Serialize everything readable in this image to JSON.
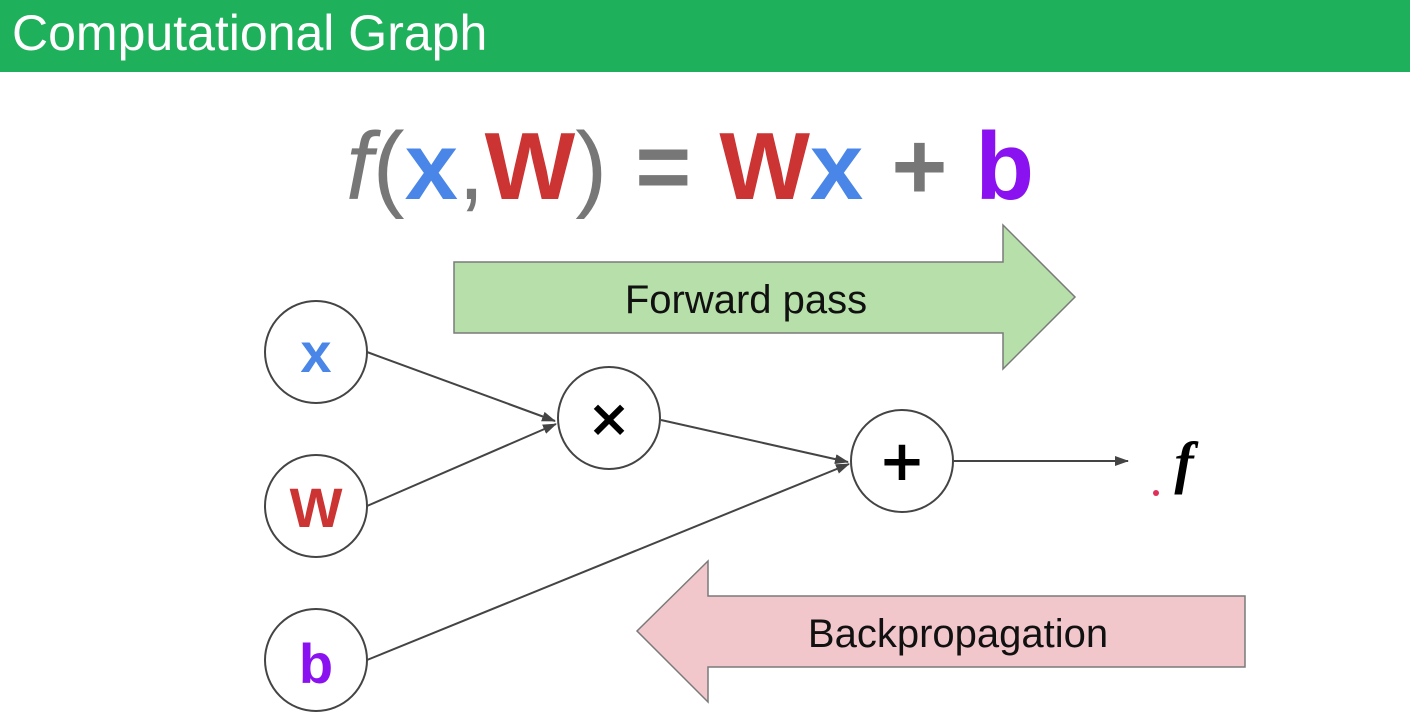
{
  "header": {
    "title": "Computational Graph"
  },
  "equation": {
    "f": "f",
    "open_paren": "(",
    "x": "x",
    "comma": ",",
    "w": "W",
    "close_paren": ")",
    "equals": "=",
    "w2": "W",
    "x2": "x",
    "plus": "+",
    "b": "b"
  },
  "arrows": {
    "forward_label": "Forward pass",
    "backward_label": "Backpropagation"
  },
  "nodes": {
    "x": "x",
    "w": "W",
    "b": "b",
    "multiply": "×",
    "add": "+",
    "output": "f"
  },
  "colors": {
    "header": "#1eb05b",
    "x": "#4a86e8",
    "w": "#cc3333",
    "b": "#8a12f0",
    "operator_gray": "#777777",
    "forward_fill": "#b7dfaa",
    "backward_fill": "#f2c7cc"
  }
}
